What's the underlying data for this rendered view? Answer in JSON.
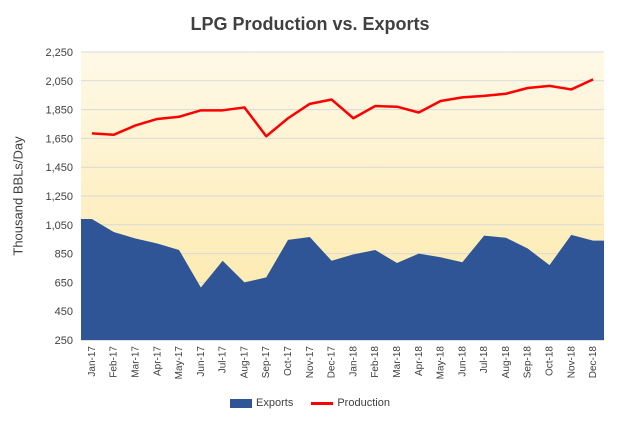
{
  "chart_data": {
    "type": "area",
    "title": "LPG Production vs. Exports",
    "xlabel": "",
    "ylabel": "Thousand BBLs/Day",
    "ylim": [
      250,
      2250
    ],
    "yticks": [
      250,
      450,
      650,
      850,
      1050,
      1250,
      1450,
      1650,
      1850,
      2050,
      2250
    ],
    "ytick_labels": [
      "250",
      "450",
      "650",
      "850",
      "1,050",
      "1,250",
      "1,450",
      "1,650",
      "1,850",
      "2,050",
      "2,250"
    ],
    "categories": [
      "Jan-17",
      "Feb-17",
      "Mar-17",
      "Apr-17",
      "May-17",
      "Jun-17",
      "Jul-17",
      "Aug-17",
      "Sep-17",
      "Oct-17",
      "Nov-17",
      "Dec-17",
      "Jan-18",
      "Feb-18",
      "Mar-18",
      "Apr-18",
      "May-18",
      "Jun-18",
      "Jul-18",
      "Aug-18",
      "Sep-18",
      "Oct-18",
      "Nov-18",
      "Dec-18"
    ],
    "series": [
      {
        "name": "Exports",
        "kind": "area",
        "color": "#2f5597",
        "values": [
          1090,
          1000,
          955,
          920,
          875,
          615,
          800,
          650,
          685,
          945,
          965,
          800,
          845,
          875,
          785,
          850,
          825,
          790,
          975,
          960,
          885,
          770,
          980,
          940
        ]
      },
      {
        "name": "Production",
        "kind": "line",
        "color": "#ff0000",
        "values": [
          1685,
          1675,
          1740,
          1785,
          1800,
          1845,
          1845,
          1865,
          1665,
          1790,
          1890,
          1920,
          1790,
          1875,
          1870,
          1830,
          1910,
          1935,
          1945,
          1960,
          2000,
          2015,
          1990,
          2060
        ]
      }
    ],
    "legend_position": "bottom",
    "grid": true,
    "background_gradient": [
      "#fef9e8",
      "#fde8a6"
    ]
  }
}
